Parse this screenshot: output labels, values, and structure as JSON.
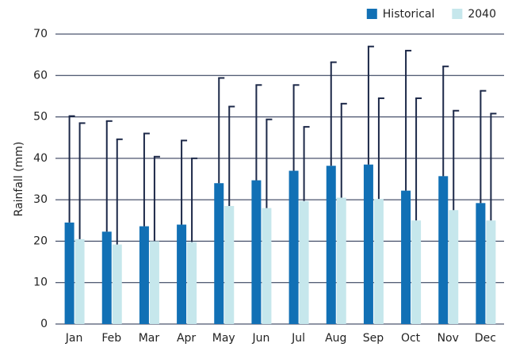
{
  "chart_data": {
    "type": "bar",
    "y_label": "Rainfall (mm)",
    "categories": [
      "Jan",
      "Feb",
      "Mar",
      "Apr",
      "May",
      "Jun",
      "Jul",
      "Aug",
      "Sep",
      "Oct",
      "Nov",
      "Dec"
    ],
    "series": [
      {
        "name": "Historical",
        "color": "#1170b5",
        "values": [
          24.5,
          22.3,
          23.6,
          24,
          34,
          34.7,
          37,
          38.2,
          38.5,
          32.2,
          35.7,
          29.2
        ],
        "errors": [
          25.7,
          26.7,
          22.4,
          20.3,
          25.4,
          23.0,
          20.7,
          25.0,
          28.5,
          33.8,
          26.5,
          27.1
        ]
      },
      {
        "name": "2040",
        "color": "#c6e7ec",
        "values": [
          20.5,
          19.2,
          20,
          19.8,
          28.5,
          28,
          29.7,
          30.5,
          30.2,
          25,
          27.5,
          25
        ],
        "errors": [
          28.0,
          25.4,
          20.4,
          20.2,
          24.0,
          21.4,
          17.9,
          22.7,
          24.3,
          29.5,
          24.0,
          25.8
        ]
      }
    ],
    "error_color": "#1c2848",
    "ylim": [
      0,
      70
    ],
    "yticks": [
      0,
      10,
      20,
      30,
      40,
      50,
      60,
      70
    ],
    "grid": true,
    "legend": "top-right"
  }
}
